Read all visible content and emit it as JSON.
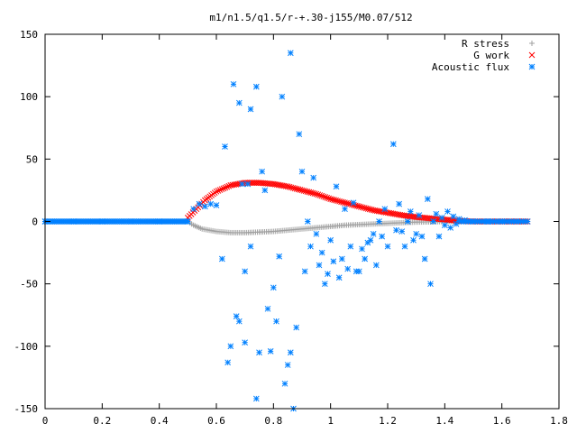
{
  "chart_data": {
    "type": "scatter",
    "title": "m1/n1.5/q1.5/r-+.30-j155/M0.07/512",
    "xlabel": "",
    "ylabel": "",
    "xlim": [
      0,
      1.8
    ],
    "ylim": [
      -150,
      150
    ],
    "xticks": [
      "0",
      "0.2",
      "0.4",
      "0.6",
      "0.8",
      "1",
      "1.2",
      "1.4",
      "1.6",
      "1.8"
    ],
    "yticks": [
      "150",
      "100",
      "50",
      "0",
      "-50",
      "-100",
      "-150"
    ],
    "grid": false,
    "legend_position": "top-right",
    "series": [
      {
        "name": "R stress",
        "marker": "+",
        "color": "#a0a0a0",
        "points": [
          [
            0,
            0
          ],
          [
            0.1,
            0
          ],
          [
            0.2,
            0
          ],
          [
            0.3,
            0
          ],
          [
            0.4,
            0
          ],
          [
            0.5,
            0
          ],
          [
            0.52,
            -3
          ],
          [
            0.55,
            -6
          ],
          [
            0.6,
            -8
          ],
          [
            0.65,
            -9
          ],
          [
            0.7,
            -9
          ],
          [
            0.75,
            -8.5
          ],
          [
            0.8,
            -8
          ],
          [
            0.85,
            -7
          ],
          [
            0.9,
            -6
          ],
          [
            0.95,
            -5
          ],
          [
            1.0,
            -4
          ],
          [
            1.05,
            -3
          ],
          [
            1.1,
            -2.5
          ],
          [
            1.15,
            -2
          ],
          [
            1.2,
            -1.5
          ],
          [
            1.25,
            -1
          ],
          [
            1.3,
            -0.5
          ],
          [
            1.35,
            -0.3
          ],
          [
            1.4,
            0
          ],
          [
            1.5,
            0
          ],
          [
            1.6,
            0
          ],
          [
            1.69,
            0
          ]
        ]
      },
      {
        "name": "G work",
        "marker": "x",
        "color": "#ff0000",
        "points": [
          [
            0.5,
            3
          ],
          [
            0.53,
            10
          ],
          [
            0.56,
            17
          ],
          [
            0.6,
            24
          ],
          [
            0.65,
            29
          ],
          [
            0.7,
            31
          ],
          [
            0.75,
            31
          ],
          [
            0.8,
            30
          ],
          [
            0.85,
            28
          ],
          [
            0.9,
            25
          ],
          [
            0.95,
            22
          ],
          [
            1.0,
            18
          ],
          [
            1.05,
            15
          ],
          [
            1.1,
            12
          ],
          [
            1.15,
            9
          ],
          [
            1.2,
            7
          ],
          [
            1.25,
            5
          ],
          [
            1.3,
            3.5
          ],
          [
            1.35,
            2.5
          ],
          [
            1.4,
            1.5
          ],
          [
            1.45,
            0.5
          ],
          [
            1.5,
            0
          ],
          [
            1.6,
            0
          ],
          [
            1.69,
            0
          ]
        ]
      },
      {
        "name": "Acoustic flux",
        "marker": "*",
        "color": "#0080ff",
        "points": [
          [
            0,
            0
          ],
          [
            0.1,
            0
          ],
          [
            0.2,
            0
          ],
          [
            0.3,
            0
          ],
          [
            0.4,
            0
          ],
          [
            0.5,
            0
          ],
          [
            0.52,
            10
          ],
          [
            0.54,
            14
          ],
          [
            0.56,
            12
          ],
          [
            0.58,
            14
          ],
          [
            0.6,
            13
          ],
          [
            0.62,
            -30
          ],
          [
            0.63,
            60
          ],
          [
            0.64,
            -113
          ],
          [
            0.65,
            -100
          ],
          [
            0.66,
            110
          ],
          [
            0.67,
            -76
          ],
          [
            0.68,
            95
          ],
          [
            0.68,
            -80
          ],
          [
            0.69,
            30
          ],
          [
            0.7,
            -97
          ],
          [
            0.7,
            -40
          ],
          [
            0.71,
            30
          ],
          [
            0.72,
            90
          ],
          [
            0.72,
            -20
          ],
          [
            0.74,
            -142
          ],
          [
            0.74,
            108
          ],
          [
            0.75,
            -105
          ],
          [
            0.76,
            40
          ],
          [
            0.77,
            25
          ],
          [
            0.78,
            -70
          ],
          [
            0.79,
            -104
          ],
          [
            0.8,
            -53
          ],
          [
            0.81,
            -80
          ],
          [
            0.82,
            -28
          ],
          [
            0.83,
            100
          ],
          [
            0.84,
            -130
          ],
          [
            0.85,
            -115
          ],
          [
            0.86,
            135
          ],
          [
            0.86,
            -105
          ],
          [
            0.87,
            -150
          ],
          [
            0.88,
            -85
          ],
          [
            0.89,
            70
          ],
          [
            0.9,
            40
          ],
          [
            0.91,
            -40
          ],
          [
            0.92,
            0
          ],
          [
            0.93,
            -20
          ],
          [
            0.94,
            35
          ],
          [
            0.95,
            -10
          ],
          [
            0.96,
            -35
          ],
          [
            0.97,
            -25
          ],
          [
            0.98,
            -50
          ],
          [
            0.99,
            -42
          ],
          [
            1.0,
            -15
          ],
          [
            1.01,
            -32
          ],
          [
            1.02,
            28
          ],
          [
            1.03,
            -45
          ],
          [
            1.04,
            -30
          ],
          [
            1.05,
            10
          ],
          [
            1.06,
            -38
          ],
          [
            1.07,
            -20
          ],
          [
            1.08,
            15
          ],
          [
            1.09,
            -40
          ],
          [
            1.1,
            -40
          ],
          [
            1.11,
            -22
          ],
          [
            1.12,
            -30
          ],
          [
            1.13,
            -17
          ],
          [
            1.14,
            -15
          ],
          [
            1.15,
            -10
          ],
          [
            1.16,
            -35
          ],
          [
            1.17,
            0
          ],
          [
            1.18,
            -12
          ],
          [
            1.19,
            10
          ],
          [
            1.2,
            -20
          ],
          [
            1.22,
            62
          ],
          [
            1.23,
            -7
          ],
          [
            1.24,
            14
          ],
          [
            1.25,
            -8
          ],
          [
            1.26,
            -20
          ],
          [
            1.27,
            0
          ],
          [
            1.28,
            8
          ],
          [
            1.29,
            -15
          ],
          [
            1.3,
            -10
          ],
          [
            1.31,
            5
          ],
          [
            1.32,
            -12
          ],
          [
            1.33,
            -30
          ],
          [
            1.34,
            18
          ],
          [
            1.35,
            -50
          ],
          [
            1.36,
            0
          ],
          [
            1.37,
            6
          ],
          [
            1.38,
            -12
          ],
          [
            1.39,
            3
          ],
          [
            1.4,
            -3
          ],
          [
            1.41,
            8
          ],
          [
            1.42,
            -5
          ],
          [
            1.43,
            4
          ],
          [
            1.44,
            -2
          ],
          [
            1.45,
            2
          ],
          [
            1.47,
            1
          ],
          [
            1.5,
            0
          ],
          [
            1.55,
            0
          ],
          [
            1.6,
            0
          ],
          [
            1.65,
            0
          ],
          [
            1.69,
            0
          ]
        ]
      }
    ]
  }
}
